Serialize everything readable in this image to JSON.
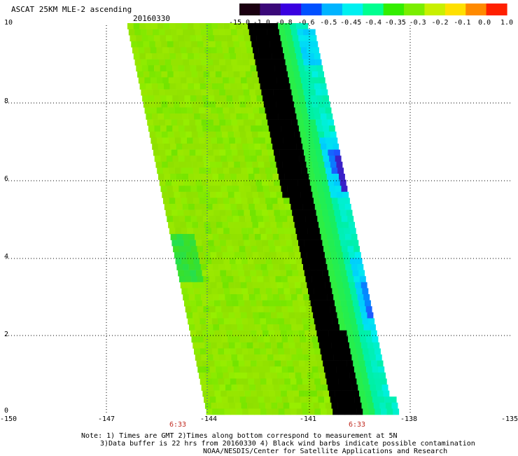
{
  "header": {
    "title": "ASCAT 25KM MLE-2 ascending",
    "date": "20160330"
  },
  "colorbar": {
    "labels": [
      "-15.0",
      "-1.0",
      "-0.8",
      "-0.6",
      "-0.5",
      "-0.45",
      "-0.4",
      "-0.35",
      "-0.3",
      "-0.2",
      "-0.1",
      "0.0",
      "1.0"
    ],
    "colors": [
      "#1a0010",
      "#3a0878",
      "#3a00e0",
      "#0050ff",
      "#00b4ff",
      "#00f0f0",
      "#00ff90",
      "#33ee00",
      "#7aee00",
      "#c8f000",
      "#ffe000",
      "#ff8a00",
      "#ff2000"
    ]
  },
  "axes": {
    "x_ticks": [
      "-150",
      "-147",
      "-144",
      "-141",
      "-138",
      "-135"
    ],
    "y_ticks": [
      "10",
      "8",
      "6",
      "4",
      "2",
      "0"
    ],
    "time_labels": [
      "6:33",
      "6:33"
    ]
  },
  "swath": {
    "value_range": [
      -0.45,
      -0.3
    ],
    "low_value_zone": "eastern edge, near -141 to -139",
    "min_value_area": "approx lat 6, lon -140.2"
  },
  "notes": {
    "line1": "Note: 1) Times are GMT 2)Times along bottom correspond to measurement at 5N",
    "line2": "3)Data buffer is 22 hrs from 20160330 4) Black wind barbs indicate possible contamination",
    "line3": "NOAA/NESDIS/Center for Satellite Applications and Research"
  }
}
